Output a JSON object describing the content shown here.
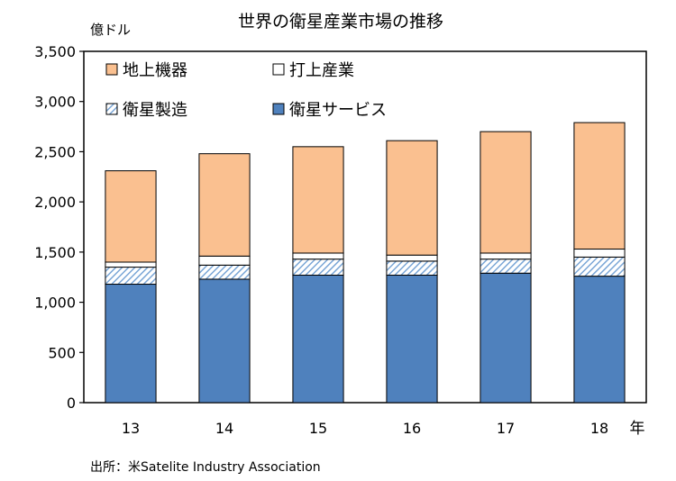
{
  "chart_data": {
    "type": "bar",
    "stacked": true,
    "title": "世界の衛星産業市場の推移",
    "ylabel": "億ドル",
    "xlabel": "年",
    "ylim": [
      0,
      3500
    ],
    "yticks": [
      "0",
      "500",
      "1,000",
      "1,500",
      "2,000",
      "2,500",
      "3,000",
      "3,500"
    ],
    "ytick_values": [
      0,
      500,
      1000,
      1500,
      2000,
      2500,
      3000,
      3500
    ],
    "categories": [
      "13",
      "14",
      "15",
      "16",
      "17",
      "18"
    ],
    "series": [
      {
        "name": "衛星サービス",
        "color": "#4f81bd",
        "pattern": "solid",
        "values": [
          1180,
          1230,
          1270,
          1270,
          1290,
          1260
        ]
      },
      {
        "name": "衛星製造",
        "color": "#c6d9f1",
        "pattern": "hatch",
        "values": [
          170,
          140,
          160,
          140,
          140,
          190
        ]
      },
      {
        "name": "打上産業",
        "color": "#ffffff",
        "pattern": "solid",
        "values": [
          50,
          90,
          60,
          60,
          60,
          80
        ]
      },
      {
        "name": "地上機器",
        "color": "#fac090",
        "pattern": "solid",
        "values": [
          910,
          1020,
          1060,
          1140,
          1210,
          1260
        ]
      }
    ],
    "legend_order": [
      "地上機器",
      "打上産業",
      "衛星製造",
      "衛星サービス"
    ],
    "legend": "top-left",
    "grid": false
  },
  "source": "出所：米Satelite Industry Association"
}
